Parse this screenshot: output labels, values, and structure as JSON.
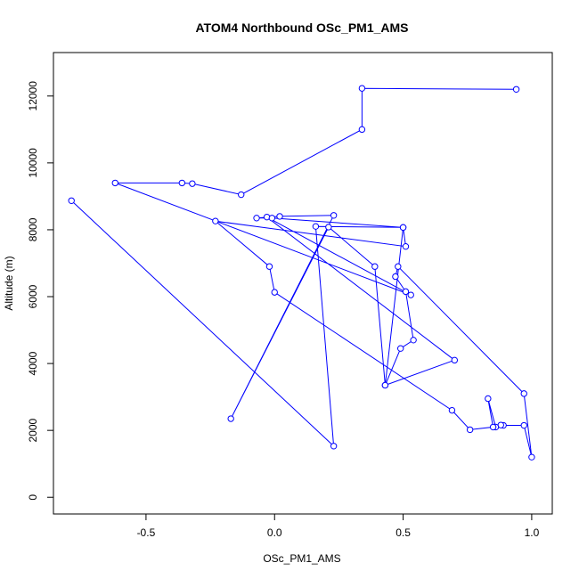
{
  "chart_data": {
    "type": "line",
    "title": "ATOM4 Northbound OSc_PM1_AMS",
    "xlabel": "OSc_PM1_AMS",
    "ylabel": "Altitude (m)",
    "xlim": [
      -0.86,
      1.08
    ],
    "ylim": [
      -500,
      13300
    ],
    "xticks": [
      -0.5,
      0.0,
      0.5,
      1.0
    ],
    "xtick_labels": [
      "-0.5",
      "0.0",
      "0.5",
      "1.0"
    ],
    "yticks": [
      0,
      2000,
      4000,
      6000,
      8000,
      10000,
      12000
    ],
    "ytick_labels": [
      "0",
      "2000",
      "4000",
      "6000",
      "8000",
      "10000",
      "12000"
    ],
    "grid": false,
    "series": [
      {
        "color": "#0000ff",
        "marker": "open-circle",
        "x": [
          0.94,
          0.34,
          0.34,
          -0.13,
          -0.32,
          -0.36,
          -0.62,
          0.53,
          -0.03,
          0.7,
          0.43,
          0.49,
          0.54,
          0.51,
          0.47,
          0.48,
          0.97,
          1.0,
          0.97,
          0.89,
          0.88,
          0.86,
          0.83,
          0.85,
          0.76,
          0.69,
          0.0,
          -0.02,
          -0.23,
          0.51,
          0.5,
          -0.01,
          -0.07,
          0.02,
          0.23,
          -0.17,
          0.21,
          0.39,
          0.43,
          0.5,
          0.16,
          0.23,
          -0.79
        ],
        "y": [
          12200,
          12230,
          11000,
          9050,
          9380,
          9400,
          9400,
          6050,
          8380,
          4100,
          3350,
          4450,
          4700,
          6150,
          6600,
          6900,
          3100,
          1200,
          2150,
          2150,
          2160,
          2100,
          2950,
          2100,
          2020,
          2600,
          6130,
          6900,
          8260,
          7500,
          8070,
          8350,
          8350,
          8400,
          8430,
          2350,
          8080,
          6900,
          3350,
          8070,
          8100,
          1530,
          8870
        ]
      }
    ]
  }
}
